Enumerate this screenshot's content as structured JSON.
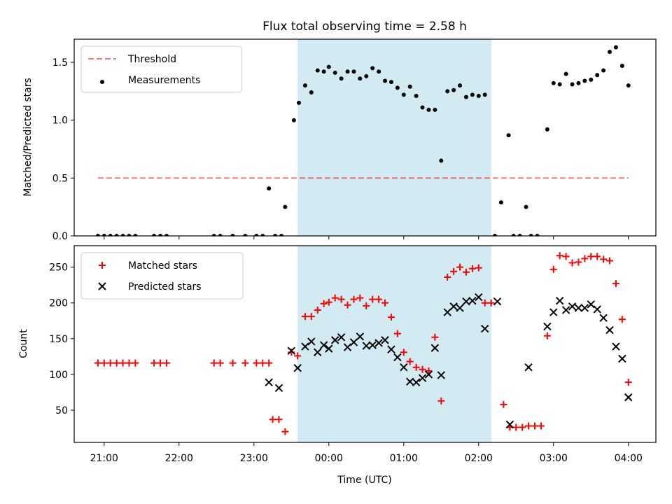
{
  "title": "Flux total observing time = 2.58 h",
  "xlabel": "Time (UTC)",
  "x_tick_labels": [
    "21:00",
    "22:00",
    "23:00",
    "00:00",
    "01:00",
    "02:00",
    "03:00",
    "04:00"
  ],
  "colors": {
    "shade": "#add8e6",
    "threshold": "#ff0000",
    "measurement": "#000000",
    "matched": "#ff0000",
    "predicted": "#000000"
  },
  "chart_data": [
    {
      "type": "scatter",
      "ylabel": "Matched/Predicted stars",
      "xlim": [
        "20:36",
        "04:22"
      ],
      "ylim": [
        0,
        1.7
      ],
      "yticks": [
        0.0,
        0.5,
        1.0,
        1.5
      ],
      "y_tick_labels": [
        "0.0",
        "0.5",
        "1.0",
        "1.5"
      ],
      "shaded_interval": [
        "23:35",
        "02:10"
      ],
      "legend": {
        "position": "upper left",
        "entries": [
          "Threshold",
          "Measurements"
        ]
      },
      "threshold": {
        "name": "Threshold",
        "value": 0.5,
        "x_range": [
          "20:55",
          "04:00"
        ],
        "style": "dashed"
      },
      "series": [
        {
          "name": "Measurements",
          "points": [
            [
              "20:55",
              0
            ],
            [
              "21:00",
              0
            ],
            [
              "21:05",
              0
            ],
            [
              "21:10",
              0
            ],
            [
              "21:15",
              0
            ],
            [
              "21:20",
              0
            ],
            [
              "21:25",
              0
            ],
            [
              "21:40",
              0
            ],
            [
              "21:45",
              0
            ],
            [
              "21:50",
              0
            ],
            [
              "22:28",
              0
            ],
            [
              "22:33",
              0
            ],
            [
              "22:43",
              0
            ],
            [
              "22:53",
              0
            ],
            [
              "23:02",
              0
            ],
            [
              "23:07",
              0
            ],
            [
              "23:12",
              0.41
            ],
            [
              "23:17",
              0
            ],
            [
              "23:22",
              0
            ],
            [
              "23:25",
              0.25
            ],
            [
              "23:32",
              1.0
            ],
            [
              "23:36",
              1.15
            ],
            [
              "23:41",
              1.3
            ],
            [
              "23:46",
              1.24
            ],
            [
              "23:51",
              1.43
            ],
            [
              "23:56",
              1.42
            ],
            [
              "00:00",
              1.46
            ],
            [
              "00:05",
              1.41
            ],
            [
              "00:10",
              1.36
            ],
            [
              "00:15",
              1.42
            ],
            [
              "00:20",
              1.42
            ],
            [
              "00:25",
              1.36
            ],
            [
              "00:30",
              1.38
            ],
            [
              "00:35",
              1.45
            ],
            [
              "00:40",
              1.42
            ],
            [
              "00:45",
              1.34
            ],
            [
              "00:50",
              1.33
            ],
            [
              "00:55",
              1.28
            ],
            [
              "01:00",
              1.22
            ],
            [
              "01:05",
              1.29
            ],
            [
              "01:10",
              1.21
            ],
            [
              "01:15",
              1.11
            ],
            [
              "01:20",
              1.09
            ],
            [
              "01:25",
              1.09
            ],
            [
              "01:30",
              0.65
            ],
            [
              "01:35",
              1.25
            ],
            [
              "01:40",
              1.26
            ],
            [
              "01:45",
              1.3
            ],
            [
              "01:50",
              1.2
            ],
            [
              "01:55",
              1.22
            ],
            [
              "02:00",
              1.21
            ],
            [
              "02:05",
              1.22
            ],
            [
              "02:13",
              0
            ],
            [
              "02:18",
              0.29
            ],
            [
              "02:24",
              0.87
            ],
            [
              "02:28",
              0
            ],
            [
              "02:33",
              0
            ],
            [
              "02:38",
              0.25
            ],
            [
              "02:42",
              0
            ],
            [
              "02:47",
              0
            ],
            [
              "02:55",
              0.92
            ],
            [
              "03:00",
              1.32
            ],
            [
              "03:05",
              1.31
            ],
            [
              "03:10",
              1.4
            ],
            [
              "03:15",
              1.31
            ],
            [
              "03:20",
              1.32
            ],
            [
              "03:25",
              1.34
            ],
            [
              "03:30",
              1.35
            ],
            [
              "03:35",
              1.39
            ],
            [
              "03:40",
              1.43
            ],
            [
              "03:45",
              1.59
            ],
            [
              "03:50",
              1.63
            ],
            [
              "03:55",
              1.47
            ],
            [
              "04:00",
              1.3
            ]
          ]
        }
      ]
    },
    {
      "type": "scatter",
      "ylabel": "Count",
      "xlim": [
        "20:36",
        "04:22"
      ],
      "ylim": [
        5,
        280
      ],
      "yticks": [
        50,
        100,
        150,
        200,
        250
      ],
      "y_tick_labels": [
        "50",
        "100",
        "150",
        "200",
        "250"
      ],
      "shaded_interval": [
        "23:35",
        "02:10"
      ],
      "legend": {
        "position": "upper left",
        "entries": [
          "Matched stars",
          "Predicted stars"
        ]
      },
      "series": [
        {
          "name": "Matched stars",
          "marker": "plus",
          "points": [
            [
              "20:55",
              116
            ],
            [
              "21:00",
              116
            ],
            [
              "21:05",
              116
            ],
            [
              "21:10",
              116
            ],
            [
              "21:15",
              116
            ],
            [
              "21:20",
              116
            ],
            [
              "21:25",
              116
            ],
            [
              "21:40",
              116
            ],
            [
              "21:45",
              116
            ],
            [
              "21:50",
              116
            ],
            [
              "22:28",
              116
            ],
            [
              "22:33",
              116
            ],
            [
              "22:43",
              116
            ],
            [
              "22:53",
              116
            ],
            [
              "23:02",
              116
            ],
            [
              "23:07",
              116
            ],
            [
              "23:12",
              116
            ],
            [
              "23:15",
              37
            ],
            [
              "23:20",
              37
            ],
            [
              "23:25",
              20
            ],
            [
              "23:30",
              131
            ],
            [
              "23:35",
              126
            ],
            [
              "23:41",
              181
            ],
            [
              "23:46",
              181
            ],
            [
              "23:51",
              190
            ],
            [
              "23:56",
              199
            ],
            [
              "00:00",
              201
            ],
            [
              "00:05",
              207
            ],
            [
              "00:10",
              205
            ],
            [
              "00:15",
              197
            ],
            [
              "00:20",
              205
            ],
            [
              "00:25",
              207
            ],
            [
              "00:30",
              196
            ],
            [
              "00:35",
              205
            ],
            [
              "00:40",
              205
            ],
            [
              "00:45",
              200
            ],
            [
              "00:50",
              180
            ],
            [
              "00:55",
              157
            ],
            [
              "01:00",
              131
            ],
            [
              "01:05",
              118
            ],
            [
              "01:10",
              110
            ],
            [
              "01:15",
              107
            ],
            [
              "01:20",
              105
            ],
            [
              "01:25",
              152
            ],
            [
              "01:30",
              63
            ],
            [
              "01:35",
              236
            ],
            [
              "01:40",
              244
            ],
            [
              "01:45",
              250
            ],
            [
              "01:50",
              243
            ],
            [
              "01:55",
              248
            ],
            [
              "02:00",
              249
            ],
            [
              "02:05",
              200
            ],
            [
              "02:10",
              200
            ],
            [
              "02:20",
              58
            ],
            [
              "02:25",
              26
            ],
            [
              "02:30",
              26
            ],
            [
              "02:35",
              26
            ],
            [
              "02:40",
              28
            ],
            [
              "02:45",
              28
            ],
            [
              "02:50",
              28
            ],
            [
              "02:55",
              154
            ],
            [
              "03:00",
              247
            ],
            [
              "03:05",
              266
            ],
            [
              "03:10",
              265
            ],
            [
              "03:15",
              256
            ],
            [
              "03:20",
              257
            ],
            [
              "03:25",
              262
            ],
            [
              "03:30",
              265
            ],
            [
              "03:35",
              265
            ],
            [
              "03:40",
              261
            ],
            [
              "03:45",
              259
            ],
            [
              "03:50",
              227
            ],
            [
              "03:55",
              177
            ],
            [
              "04:00",
              89
            ]
          ]
        },
        {
          "name": "Predicted stars",
          "marker": "x",
          "points": [
            [
              "23:12",
              89
            ],
            [
              "23:20",
              81
            ],
            [
              "23:30",
              133
            ],
            [
              "23:35",
              109
            ],
            [
              "23:41",
              139
            ],
            [
              "23:46",
              146
            ],
            [
              "23:51",
              131
            ],
            [
              "23:56",
              141
            ],
            [
              "00:00",
              136
            ],
            [
              "00:05",
              148
            ],
            [
              "00:10",
              152
            ],
            [
              "00:15",
              138
            ],
            [
              "00:20",
              145
            ],
            [
              "00:25",
              153
            ],
            [
              "00:30",
              140
            ],
            [
              "00:35",
              141
            ],
            [
              "00:40",
              144
            ],
            [
              "00:45",
              148
            ],
            [
              "00:50",
              135
            ],
            [
              "00:55",
              124
            ],
            [
              "01:00",
              110
            ],
            [
              "01:05",
              90
            ],
            [
              "01:10",
              89
            ],
            [
              "01:15",
              95
            ],
            [
              "01:20",
              100
            ],
            [
              "01:25",
              137
            ],
            [
              "01:30",
              99
            ],
            [
              "01:35",
              187
            ],
            [
              "01:40",
              195
            ],
            [
              "01:45",
              193
            ],
            [
              "01:50",
              202
            ],
            [
              "01:55",
              203
            ],
            [
              "02:00",
              208
            ],
            [
              "02:05",
              164
            ],
            [
              "02:15",
              202
            ],
            [
              "02:25",
              30
            ],
            [
              "02:40",
              110
            ],
            [
              "02:55",
              167
            ],
            [
              "03:00",
              187
            ],
            [
              "03:05",
              203
            ],
            [
              "03:10",
              190
            ],
            [
              "03:15",
              195
            ],
            [
              "03:20",
              193
            ],
            [
              "03:25",
              193
            ],
            [
              "03:30",
              198
            ],
            [
              "03:35",
              191
            ],
            [
              "03:40",
              179
            ],
            [
              "03:45",
              162
            ],
            [
              "03:50",
              139
            ],
            [
              "03:55",
              122
            ],
            [
              "04:00",
              68
            ]
          ]
        }
      ]
    }
  ]
}
